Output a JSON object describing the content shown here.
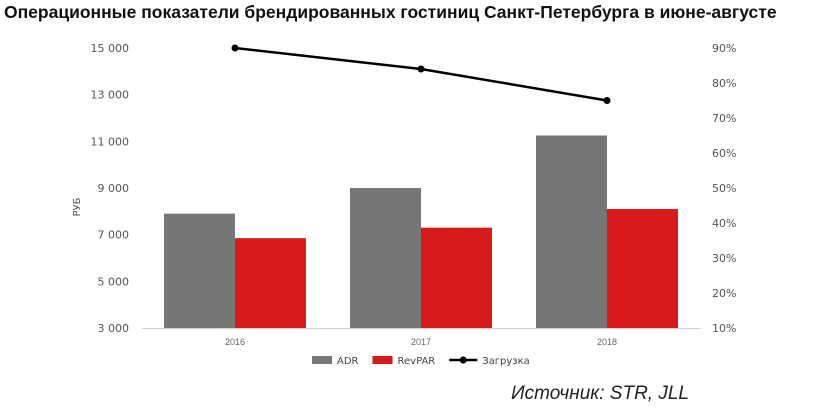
{
  "title": "Операционные показатели брендированных гостиниц Санкт-Петербурга в июне-августе",
  "source": "Источник: STR, JLL",
  "chart_data": {
    "type": "bar",
    "categories": [
      "2016",
      "2017",
      "2018"
    ],
    "series": [
      {
        "name": "ADR",
        "type": "bar",
        "axis": "left",
        "color": "#767676",
        "values": [
          7900,
          9000,
          11250
        ]
      },
      {
        "name": "RevPAR",
        "type": "bar",
        "axis": "left",
        "color": "#d71a1a",
        "values": [
          6850,
          7300,
          8100
        ]
      },
      {
        "name": "Загрузка",
        "type": "line",
        "axis": "right",
        "color": "#000000",
        "values": [
          0.9,
          0.84,
          0.75
        ]
      }
    ],
    "ylabel": "РУБ",
    "ylim": [
      3000,
      15000
    ],
    "yticks": [
      "3 000",
      "5 000",
      "7 000",
      "9 000",
      "11 000",
      "13 000",
      "15 000"
    ],
    "y2lim": [
      0.1,
      0.9
    ],
    "y2ticks": [
      "10%",
      "20%",
      "30%",
      "40%",
      "50%",
      "60%",
      "70%",
      "80%",
      "90%"
    ],
    "grid": false,
    "legend": "bottom"
  }
}
